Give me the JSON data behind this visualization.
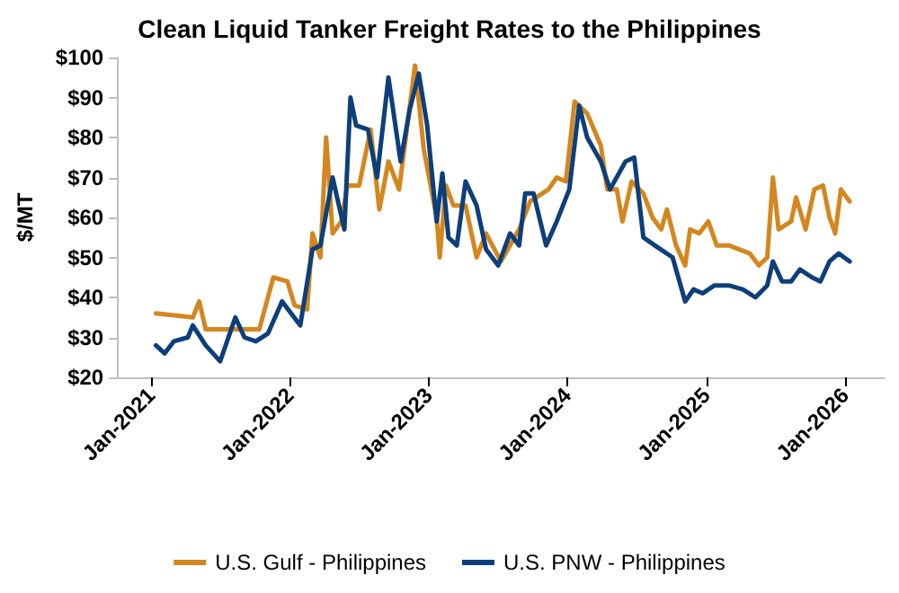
{
  "chart_data": {
    "type": "line",
    "title": "Clean Liquid Tanker Freight Rates to the Philippines",
    "ylabel": "$/MT",
    "xlim": [
      "2020-10-05",
      "2026-04-15"
    ],
    "xticks": [
      {
        "value": "2021-01-01",
        "label": "Jan-2021"
      },
      {
        "value": "2022-01-01",
        "label": "Jan-2022"
      },
      {
        "value": "2023-01-01",
        "label": "Jan-2023"
      },
      {
        "value": "2024-01-01",
        "label": "Jan-2024"
      },
      {
        "value": "2025-01-01",
        "label": "Jan-2025"
      },
      {
        "value": "2026-01-01",
        "label": "Jan-2026"
      }
    ],
    "ylim": [
      20,
      100
    ],
    "yticks": [
      {
        "value": 20,
        "label": "$20"
      },
      {
        "value": 30,
        "label": "$30"
      },
      {
        "value": 40,
        "label": "$40"
      },
      {
        "value": 50,
        "label": "$50"
      },
      {
        "value": 60,
        "label": "$60"
      },
      {
        "value": 70,
        "label": "$70"
      },
      {
        "value": 80,
        "label": "$80"
      },
      {
        "value": 90,
        "label": "$90"
      },
      {
        "value": 100,
        "label": "$100"
      }
    ],
    "grid": false,
    "legend": "bottom",
    "marker": "none",
    "line_style": "solid",
    "series": [
      {
        "name": "U.S. Gulf - Philippines",
        "color": "#d4861f",
        "x": [
          "2021-01-13",
          "2021-04-20",
          "2021-05-07",
          "2021-05-24",
          "2021-10-12",
          "2021-11-18",
          "2021-12-25",
          "2022-01-13",
          "2022-02-15",
          "2022-03-01",
          "2022-03-22",
          "2022-04-06",
          "2022-04-23",
          "2022-05-16",
          "2022-06-01",
          "2022-07-02",
          "2022-08-01",
          "2022-08-24",
          "2022-09-17",
          "2022-10-15",
          "2022-11-26",
          "2022-12-19",
          "2023-01-22",
          "2023-01-30",
          "2023-02-15",
          "2023-03-07",
          "2023-04-08",
          "2023-05-07",
          "2023-06-01",
          "2023-07-10",
          "2023-08-27",
          "2023-09-25",
          "2023-11-12",
          "2023-12-04",
          "2023-12-28",
          "2024-01-20",
          "2024-02-22",
          "2024-03-29",
          "2024-04-15",
          "2024-05-10",
          "2024-05-25",
          "2024-06-18",
          "2024-07-19",
          "2024-08-12",
          "2024-09-04",
          "2024-09-19",
          "2024-10-13",
          "2024-11-06",
          "2024-11-19",
          "2024-12-13",
          "2025-01-06",
          "2025-01-28",
          "2025-03-01",
          "2025-04-25",
          "2025-05-19",
          "2025-06-10",
          "2025-06-25",
          "2025-07-10",
          "2025-08-12",
          "2025-08-25",
          "2025-09-19",
          "2025-10-12",
          "2025-11-04",
          "2025-11-21",
          "2025-12-06",
          "2025-12-21",
          "2026-01-13"
        ],
        "values": [
          36,
          35,
          39,
          32,
          32,
          45,
          44,
          38,
          37,
          56,
          50,
          80,
          56,
          59,
          68,
          68,
          82,
          62,
          74,
          67,
          98,
          77,
          60,
          50,
          68,
          63,
          63,
          50,
          56,
          49,
          57,
          64,
          67,
          70,
          69,
          89,
          86,
          78,
          67,
          67,
          59,
          69,
          66,
          60,
          57,
          62,
          53,
          48,
          57,
          56,
          59,
          53,
          53,
          51,
          48,
          50,
          70,
          57,
          59,
          65,
          57,
          67,
          68,
          60,
          56,
          67,
          64
        ]
      },
      {
        "name": "U.S. PNW - Philippines",
        "color": "#0d3f7a",
        "x": [
          "2021-01-13",
          "2021-02-05",
          "2021-03-01",
          "2021-04-07",
          "2021-04-20",
          "2021-05-24",
          "2021-07-01",
          "2021-08-10",
          "2021-09-03",
          "2021-10-03",
          "2021-11-04",
          "2021-12-11",
          "2022-01-28",
          "2022-03-01",
          "2022-03-22",
          "2022-04-23",
          "2022-05-24",
          "2022-06-09",
          "2022-06-24",
          "2022-07-25",
          "2022-08-18",
          "2022-09-17",
          "2022-10-19",
          "2022-11-12",
          "2022-12-06",
          "2022-12-28",
          "2023-01-22",
          "2023-02-06",
          "2023-02-22",
          "2023-03-16",
          "2023-04-08",
          "2023-05-07",
          "2023-06-01",
          "2023-07-03",
          "2023-08-03",
          "2023-08-27",
          "2023-09-12",
          "2023-10-04",
          "2023-11-06",
          "2023-12-04",
          "2024-01-06",
          "2024-02-01",
          "2024-02-22",
          "2024-03-29",
          "2024-04-22",
          "2024-06-02",
          "2024-06-25",
          "2024-07-19",
          "2024-08-18",
          "2024-10-04",
          "2024-11-06",
          "2024-11-28",
          "2024-12-22",
          "2025-01-22",
          "2025-03-01",
          "2025-04-07",
          "2025-05-10",
          "2025-06-10",
          "2025-06-25",
          "2025-07-19",
          "2025-08-12",
          "2025-09-04",
          "2025-10-06",
          "2025-10-28",
          "2025-11-21",
          "2025-12-15",
          "2026-01-13"
        ],
        "values": [
          28,
          26,
          29,
          30,
          33,
          28,
          24,
          35,
          30,
          29,
          31,
          39,
          33,
          52,
          53,
          70,
          57,
          90,
          83,
          82,
          70,
          95,
          74,
          87,
          96,
          83,
          59,
          71,
          55,
          53,
          69,
          63,
          52,
          48,
          56,
          53,
          66,
          66,
          53,
          59,
          67,
          88,
          80,
          74,
          67,
          74,
          75,
          55,
          53,
          50,
          39,
          42,
          41,
          43,
          43,
          42,
          40,
          43,
          49,
          44,
          44,
          47,
          45,
          44,
          49,
          51,
          49
        ]
      }
    ]
  }
}
